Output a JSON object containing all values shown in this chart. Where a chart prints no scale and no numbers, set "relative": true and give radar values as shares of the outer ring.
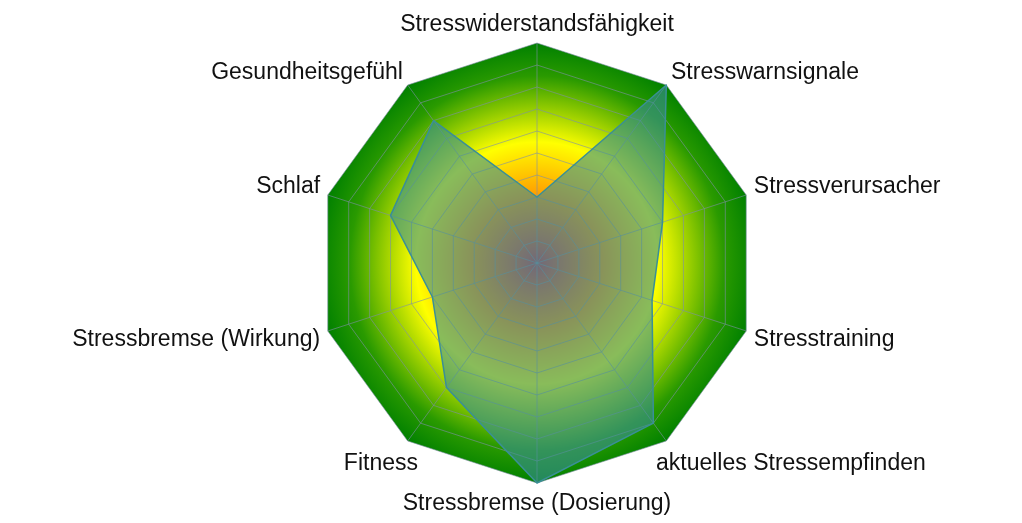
{
  "chart_data": {
    "type": "radar",
    "relative": true,
    "grid": true,
    "categories": [
      "Stresswiderstandsfähigkeit",
      "Stresswarnsignale",
      "Stressverursacher",
      "Stresstraining",
      "aktuelles Stressempfinden",
      "Stressbremse (Dosierung)",
      "Fitness",
      "Stressbremse (Wirkung)",
      "Schlaf",
      "Gesundheitsgefühl"
    ],
    "series": [
      {
        "color": "#3a8f96",
        "values": [
          0.3,
          1,
          0.6,
          0.55,
          0.9,
          1,
          0.7,
          0.5,
          0.7,
          0.8
        ]
      }
    ]
  }
}
